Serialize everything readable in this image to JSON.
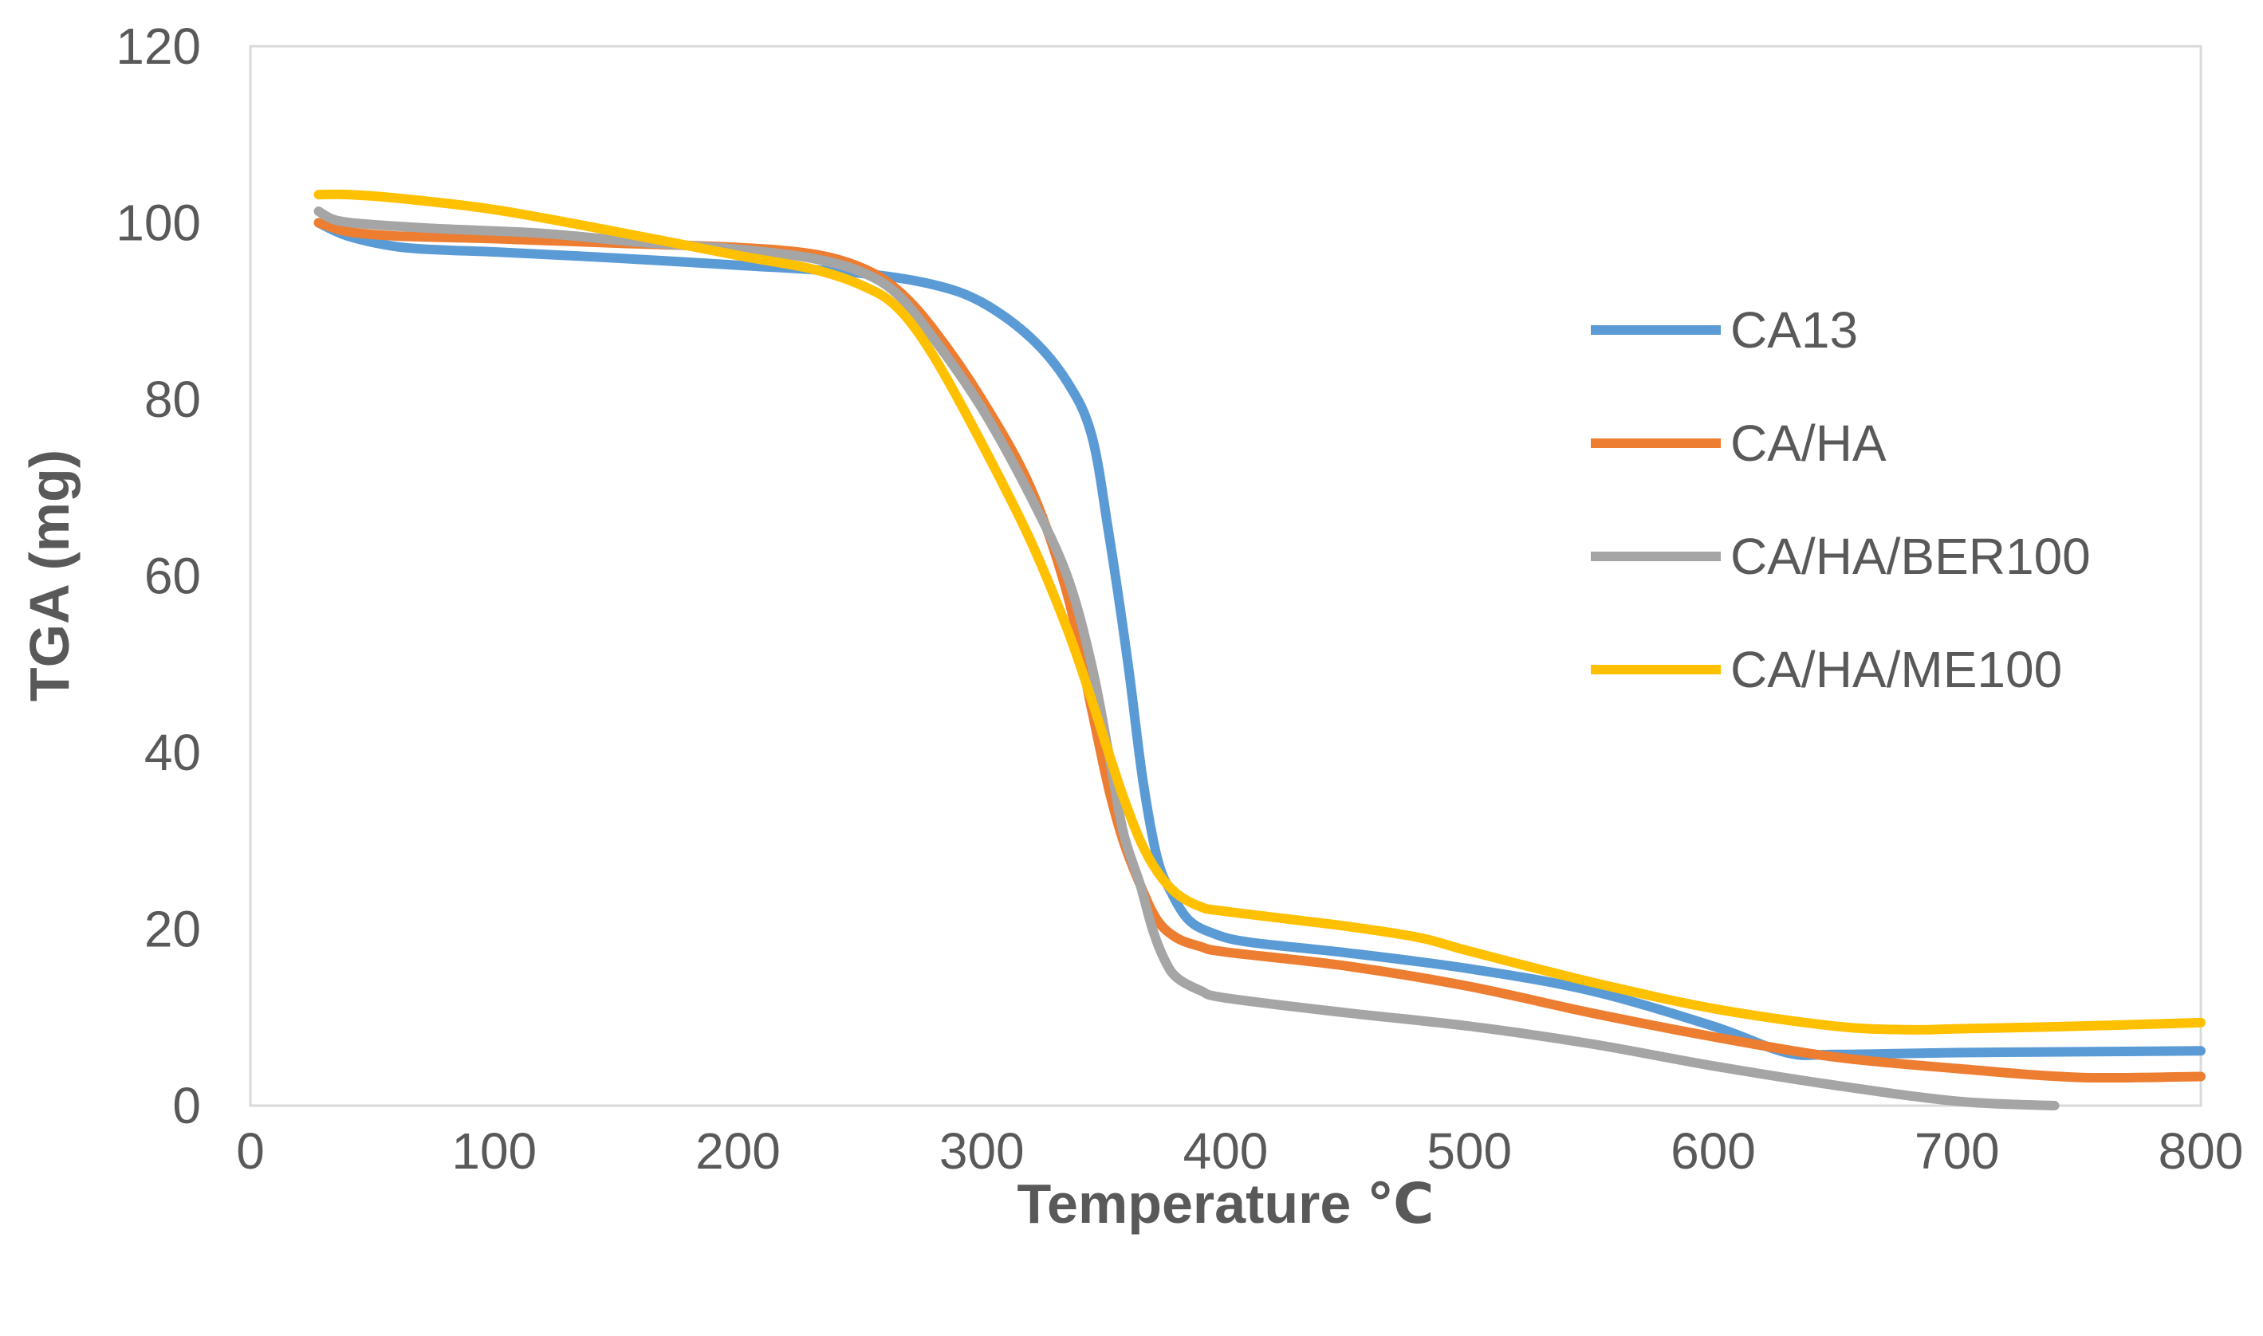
{
  "chart_data": {
    "type": "line",
    "title": "",
    "xlabel": "Temperature ℃",
    "ylabel": "TGA (mg)",
    "xlim": [
      0,
      800
    ],
    "ylim": [
      0,
      120
    ],
    "xticks": [
      "0",
      "100",
      "200",
      "300",
      "400",
      "500",
      "600",
      "700",
      "800"
    ],
    "yticks": [
      "0",
      "20",
      "40",
      "60",
      "80",
      "100",
      "120"
    ],
    "grid": false,
    "legend_position": "right",
    "series": [
      {
        "name": "CA13",
        "color": "#5B9BD5",
        "x": [
          28,
          40,
          60,
          80,
          100,
          150,
          200,
          250,
          280,
          300,
          320,
          335,
          345,
          352,
          360,
          366,
          372,
          378,
          385,
          395,
          410,
          450,
          500,
          550,
          600,
          630,
          650,
          700,
          750,
          800
        ],
        "y": [
          100,
          98.5,
          97.3,
          96.9,
          96.7,
          96,
          95.2,
          94.3,
          93,
          91,
          87,
          82,
          76,
          65,
          50,
          37,
          28,
          24,
          21,
          19.5,
          18.5,
          17.3,
          15.5,
          13,
          9,
          6,
          5.8,
          6,
          6.1,
          6.2
        ]
      },
      {
        "name": "CA/HA",
        "color": "#ED7D31",
        "x": [
          28,
          40,
          60,
          100,
          150,
          200,
          230,
          250,
          265,
          280,
          300,
          320,
          335,
          345,
          352,
          358,
          365,
          372,
          380,
          390,
          400,
          450,
          500,
          550,
          600,
          650,
          700,
          750,
          800
        ],
        "y": [
          100,
          99,
          98.5,
          98.2,
          97.7,
          97.2,
          96.5,
          95,
          92.5,
          88,
          80,
          70,
          58,
          45,
          36,
          30,
          25,
          21,
          19,
          18,
          17.4,
          15.8,
          13.5,
          10.5,
          7.8,
          5.5,
          4.2,
          3.2,
          3.3
        ]
      },
      {
        "name": "CA/HA/BER100",
        "color": "#A5A5A5",
        "x": [
          28,
          35,
          50,
          80,
          120,
          160,
          200,
          230,
          250,
          265,
          280,
          300,
          320,
          335,
          345,
          352,
          358,
          365,
          370,
          375,
          380,
          390,
          400,
          450,
          500,
          550,
          600,
          650,
          700,
          740
        ],
        "y": [
          101.3,
          100.3,
          99.8,
          99.3,
          98.8,
          97.8,
          97,
          96,
          94.5,
          92,
          87,
          79,
          69,
          60,
          50,
          40,
          31,
          25,
          20,
          16.5,
          14.5,
          13,
          12.2,
          10.5,
          9,
          7,
          4.5,
          2.3,
          0.5,
          0
        ]
      },
      {
        "name": "CA/HA/ME100",
        "color": "#FFC000",
        "x": [
          28,
          40,
          60,
          100,
          150,
          200,
          230,
          250,
          265,
          280,
          300,
          320,
          335,
          345,
          352,
          358,
          365,
          372,
          380,
          390,
          400,
          450,
          480,
          500,
          550,
          600,
          650,
          680,
          700,
          750,
          800
        ],
        "y": [
          103.2,
          103.2,
          102.8,
          101.5,
          99,
          96.3,
          94.8,
          93,
          90.5,
          85,
          75,
          64,
          54,
          46,
          40,
          35,
          30,
          26.5,
          24,
          22.5,
          22,
          20.3,
          19,
          17.5,
          14,
          11,
          9,
          8.6,
          8.7,
          9,
          9.4
        ]
      }
    ]
  }
}
